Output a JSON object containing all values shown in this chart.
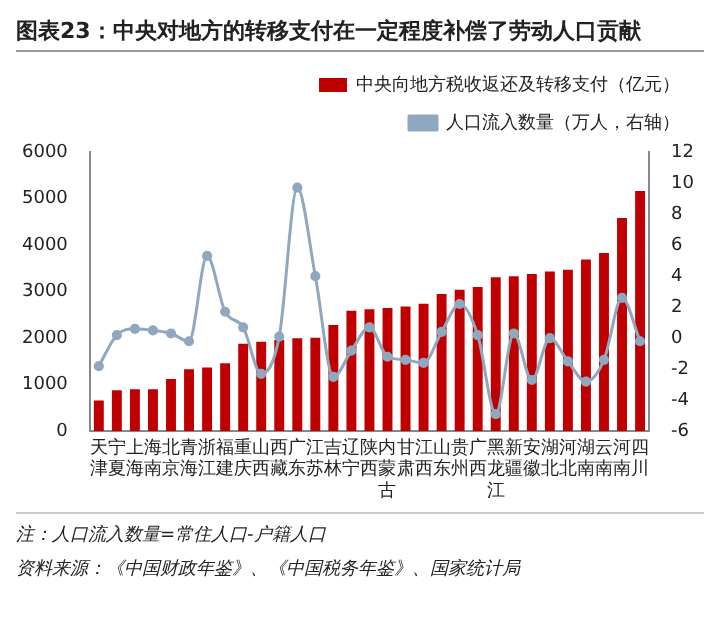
{
  "chart_data": {
    "type": "bar",
    "title": "图表23：中央对地方的转移支付在一定程度补偿了劳动人口贡献",
    "categories": [
      "天津",
      "宁夏",
      "上海",
      "海南",
      "北京",
      "青海",
      "浙江",
      "福建",
      "重庆",
      "山西",
      "西藏",
      "广东",
      "江苏",
      "吉林",
      "辽宁",
      "陕西",
      "内蒙古",
      "甘肃",
      "江西",
      "山东",
      "贵州",
      "广西",
      "黑龙江",
      "新疆",
      "安徽",
      "湖北",
      "河北",
      "湖南",
      "云南",
      "河南",
      "四川"
    ],
    "series": [
      {
        "name": "中央向地方税收返还及转移支付（亿元）",
        "color": "#c00000",
        "values": [
          660,
          880,
          900,
          900,
          1120,
          1330,
          1370,
          1460,
          1880,
          1920,
          1960,
          2000,
          2010,
          2280,
          2590,
          2620,
          2650,
          2680,
          2740,
          2950,
          3040,
          3100,
          3310,
          3330,
          3380,
          3430,
          3470,
          3690,
          3830,
          4580,
          5160
        ]
      },
      {
        "name": "人口流入数量（万人，右轴）",
        "type": "line",
        "axis": "y2",
        "color": "#8fa8bf",
        "values": [
          -1.8,
          0.2,
          0.6,
          0.5,
          0.3,
          -0.2,
          5.3,
          1.7,
          0.7,
          -2.3,
          0.1,
          9.7,
          4.0,
          -2.5,
          -0.8,
          0.7,
          -1.2,
          -1.4,
          -1.6,
          0.4,
          2.2,
          0.2,
          -4.9,
          0.3,
          -2.7,
          0,
          -1.5,
          -2.8,
          -1.4,
          2.6,
          -0.2
        ]
      }
    ],
    "ylim": [
      0,
      6000
    ],
    "yticks": [
      0,
      1000,
      2000,
      3000,
      4000,
      5000,
      6000
    ],
    "y2lim": [
      -6,
      12
    ],
    "y2ticks": [
      -6,
      -4,
      -2,
      0,
      2,
      4,
      6,
      8,
      10,
      12
    ],
    "grid": false,
    "legend": "top right",
    "marker": "circle",
    "annotations": [
      "注：人口流入数量=常住人口-户籍人口",
      "资料来源：《中国财政年鉴》、《中国税务年鉴》、国家统计局"
    ]
  }
}
